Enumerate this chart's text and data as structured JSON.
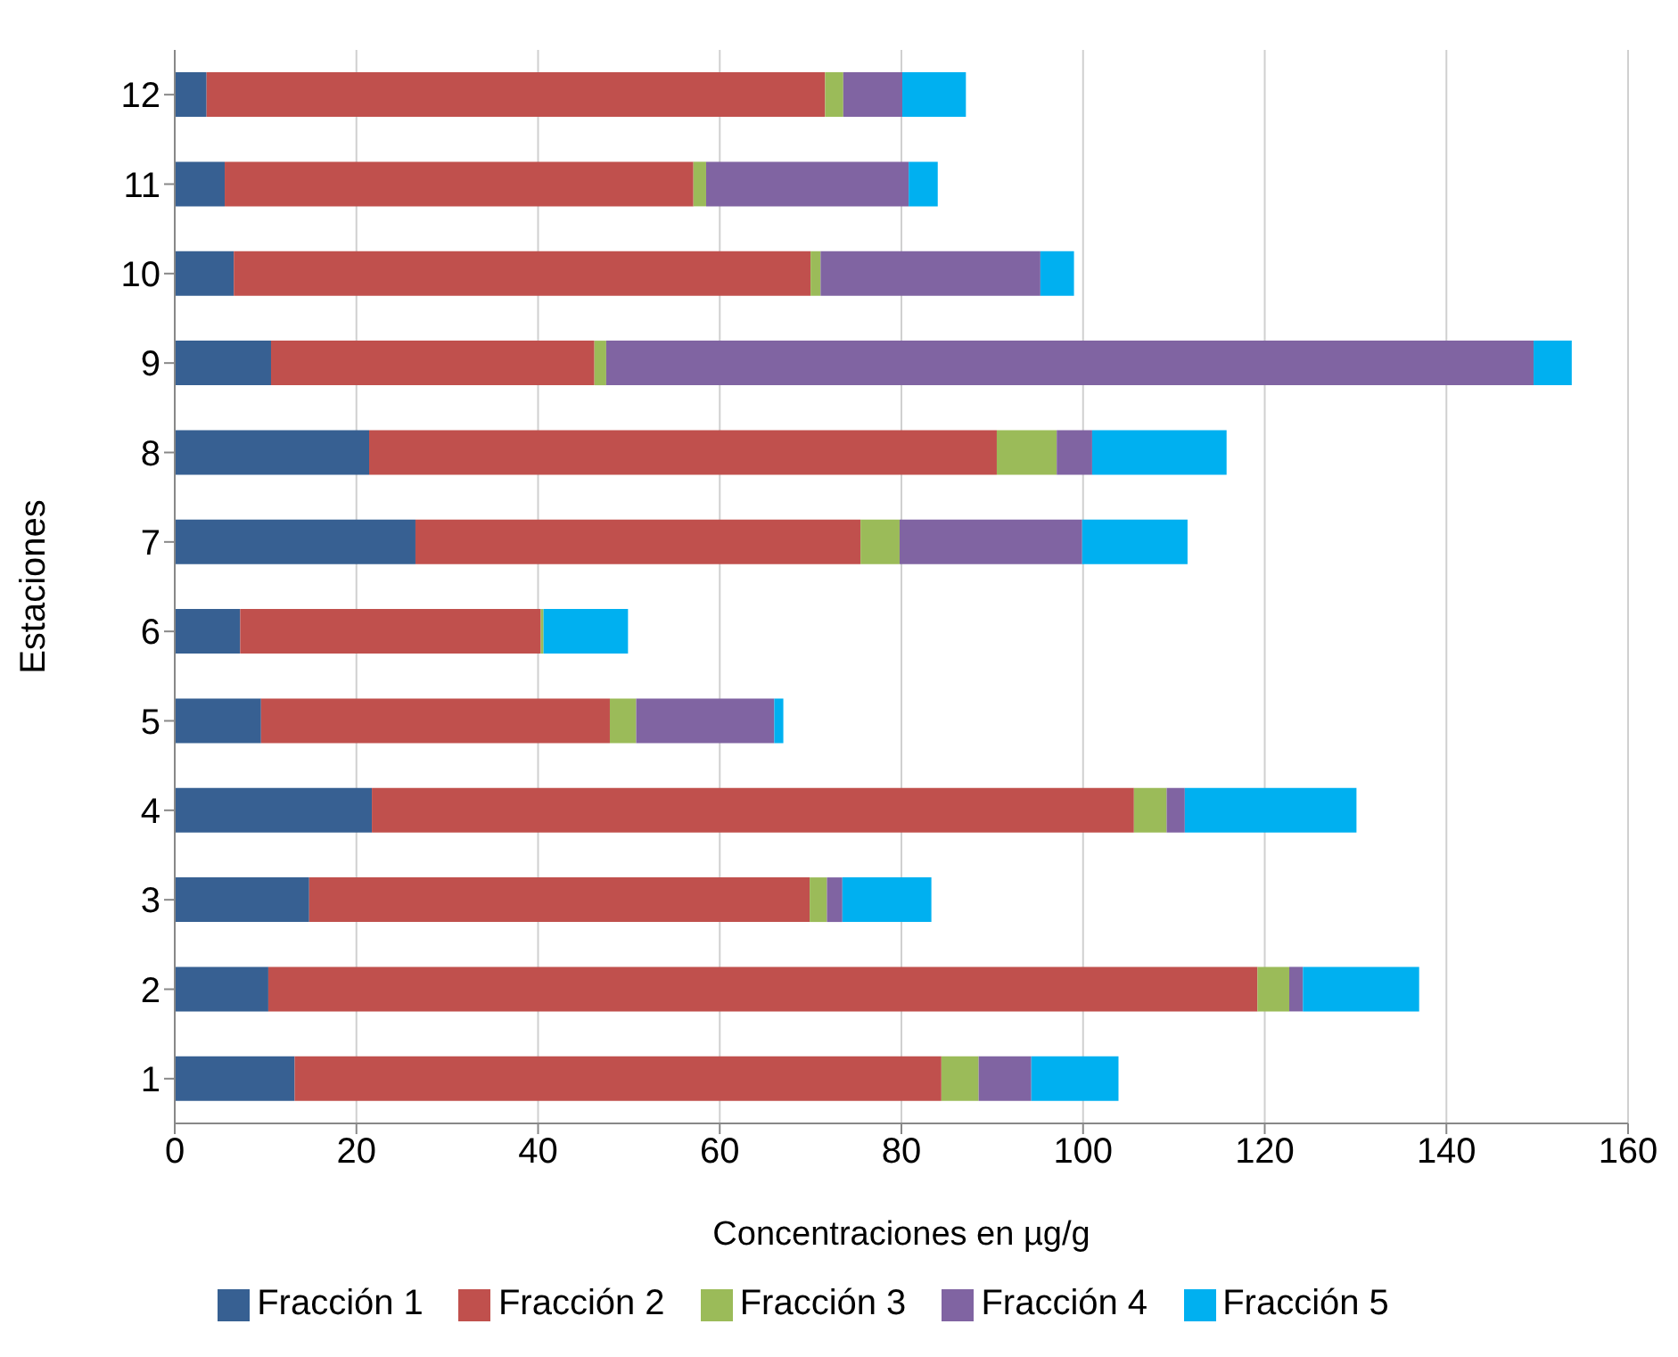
{
  "chart_data": {
    "type": "bar",
    "orientation": "horizontal",
    "stacked": true,
    "xlabel": "Concentraciones en µg/g",
    "ylabel": "Estaciones",
    "categories": [
      "12",
      "11",
      "10",
      "9",
      "8",
      "7",
      "6",
      "5",
      "4",
      "3",
      "2",
      "1"
    ],
    "series": [
      {
        "name": "Fracción 1",
        "color": "#376092",
        "values": [
          3.5,
          5.5,
          6.5,
          10.6,
          21.4,
          26.5,
          7.2,
          9.5,
          21.7,
          14.8,
          10.3,
          13.2
        ]
      },
      {
        "name": "Fracción 2",
        "color": "#c0504d",
        "values": [
          68.1,
          51.6,
          63.5,
          35.6,
          69.1,
          49,
          33.1,
          38.4,
          83.9,
          55.1,
          108.9,
          71.2
        ]
      },
      {
        "name": "Fracción 3",
        "color": "#9bbb59",
        "values": [
          2,
          1.4,
          1.1,
          1.3,
          6.6,
          4.3,
          0.3,
          2.9,
          3.6,
          1.9,
          3.5,
          4.1
        ]
      },
      {
        "name": "Fracción 4",
        "color": "#8064a2",
        "values": [
          6.5,
          22.3,
          24.2,
          102.1,
          3.9,
          20.1,
          0,
          15.2,
          2,
          1.7,
          1.5,
          5.8
        ]
      },
      {
        "name": "Fracción 5",
        "color": "#00b0f0",
        "values": [
          7,
          3.2,
          3.7,
          4.2,
          14.8,
          11.6,
          9.3,
          1,
          18.9,
          9.8,
          12.8,
          9.6
        ]
      }
    ],
    "xlim": [
      0,
      160
    ],
    "xticks": [
      0,
      20,
      40,
      60,
      80,
      100,
      120,
      140,
      160
    ],
    "grid": "x",
    "legend": "bottom"
  }
}
